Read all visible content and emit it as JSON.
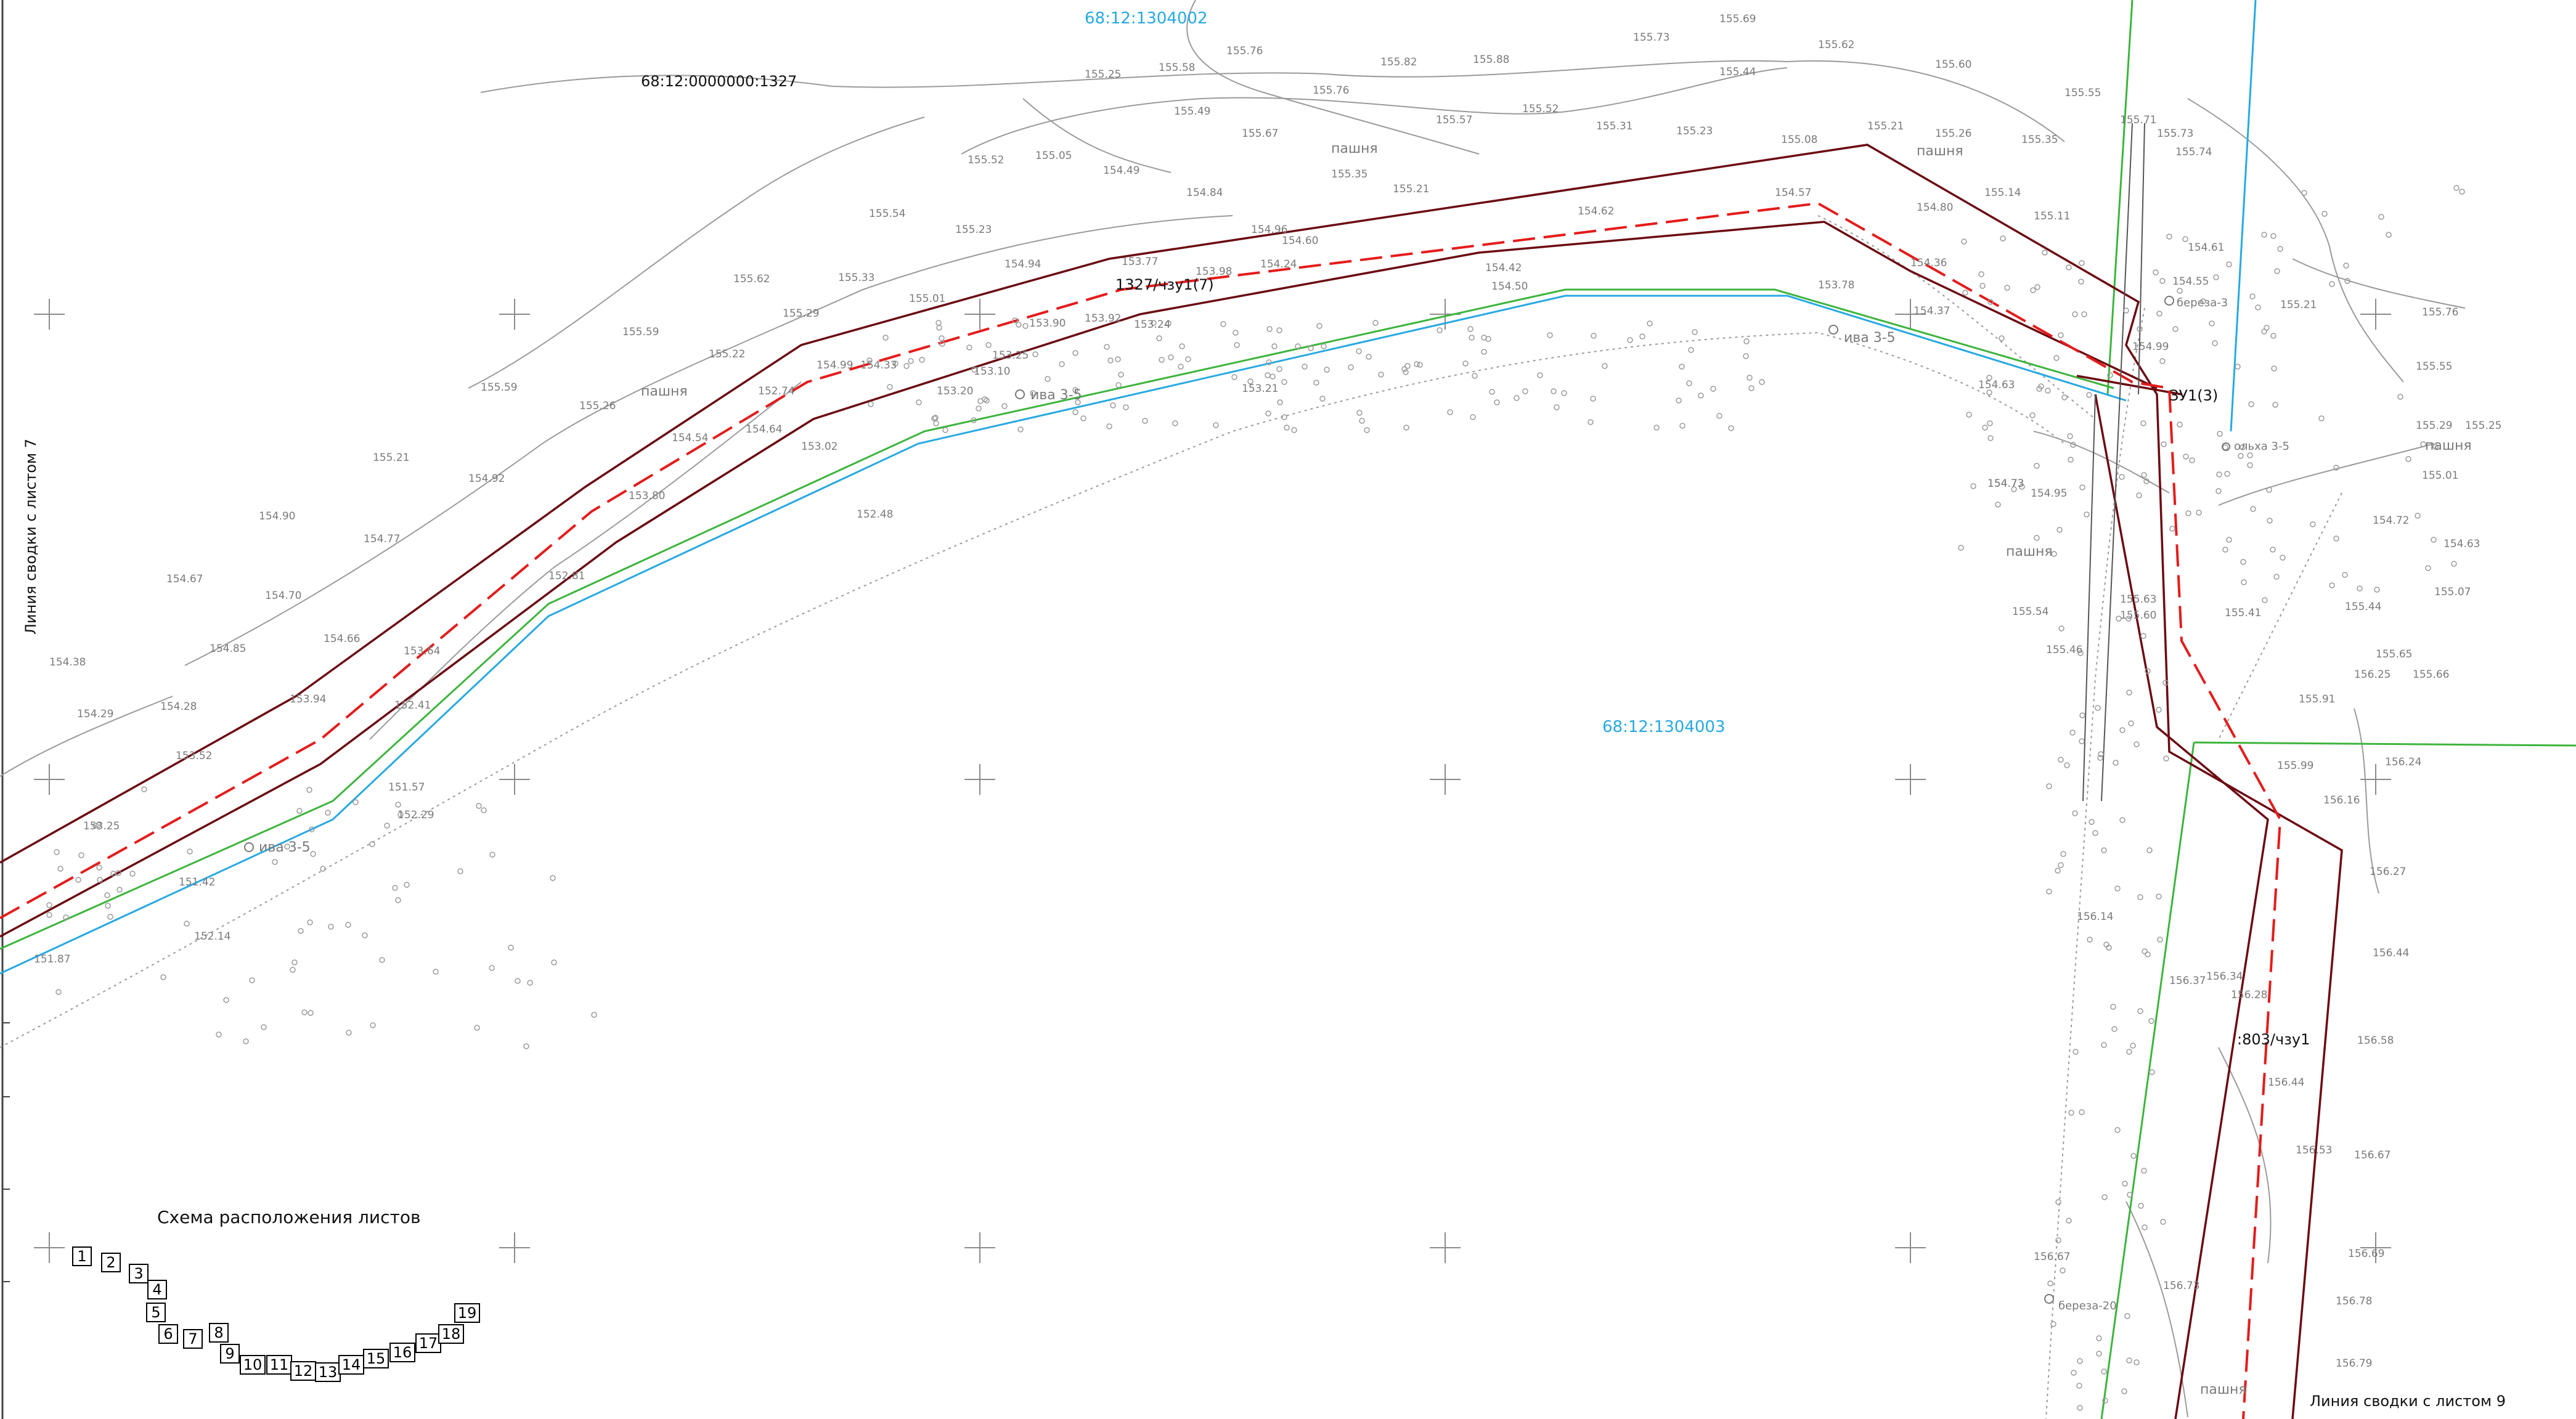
{
  "map": {
    "parcel_labels": {
      "north_cadastral": "68:12:1304002",
      "main_cadastral": "68:12:1304003",
      "nw_parcel": "68:12:0000000:1327",
      "easement_1": "1327/чзу1(7)",
      "easement_2": "ЗУ1(3)",
      "easement_3": ":803/чзу1"
    },
    "sheet_link_left": "Линия сводки с листом 7",
    "sheet_link_right": "Линия сводки с листом 9",
    "land_labels": [
      "пашня",
      "пашня",
      "пашня",
      "пашня",
      "пашня",
      "пашня"
    ],
    "tree_labels": [
      "ива 3-5",
      "ива 3-5",
      "ива 3-5",
      "береза-3",
      "ольха 3-5",
      "береза-20"
    ],
    "elevations": [
      "155.58",
      "155.76",
      "155.82",
      "155.88",
      "155.73",
      "155.69",
      "155.62",
      "155.60",
      "155.44",
      "155.55",
      "155.25",
      "155.49",
      "155.67",
      "155.76",
      "155.57",
      "155.52",
      "155.31",
      "155.23",
      "155.21",
      "155.26",
      "155.35",
      "155.52",
      "155.05",
      "154.49",
      "154.84",
      "155.35",
      "155.21",
      "155.08",
      "155.71",
      "155.73",
      "155.74",
      "155.54",
      "155.23",
      "154.94",
      "154.96",
      "154.60",
      "154.62",
      "154.57",
      "154.80",
      "155.14",
      "155.11",
      "155.62",
      "155.33",
      "155.01",
      "153.77",
      "153.98",
      "154.24",
      "154.42",
      "154.36",
      "154.61",
      "155.59",
      "155.22",
      "155.29",
      "154.99",
      "154.33",
      "153.90",
      "153.92",
      "154.50",
      "153.78",
      "154.37",
      "155.26",
      "155.59",
      "154.54",
      "153.25",
      "153.24",
      "152.74",
      "153.10",
      "153.20",
      "154.63",
      "154.99",
      "155.21",
      "154.92",
      "154.64",
      "153.80",
      "153.02",
      "152.48",
      "153.21",
      "154.55",
      "155.21",
      "155.76",
      "154.90",
      "154.77",
      "154.70",
      "154.67",
      "154.66",
      "153.64",
      "152.81",
      "154.73",
      "154.95",
      "155.55",
      "154.85",
      "154.38",
      "154.29",
      "154.28",
      "153.94",
      "152.41",
      "152.29",
      "154.73",
      "155.29",
      "155.25",
      "153.52",
      "153.25",
      "151.57",
      "151.42",
      "152.14",
      "151.87",
      "155.54",
      "155.46",
      "155.01",
      "154.72",
      "154.63",
      "155.07",
      "155.44",
      "155.41",
      "155.65",
      "155.66",
      "155.91",
      "155.99",
      "156.24",
      "156.16",
      "156.27",
      "156.44",
      "156.58",
      "156.67",
      "156.69",
      "156.78",
      "156.79",
      "156.53",
      "156.44",
      "156.14",
      "156.28",
      "156.34",
      "156.37",
      "156.67",
      "156.73",
      "156.25",
      "155.63",
      "155.60"
    ]
  },
  "scheme": {
    "title": "Схема расположения листов",
    "sheets": [
      "1",
      "2",
      "3",
      "4",
      "5",
      "6",
      "7",
      "8",
      "9",
      "10",
      "11",
      "12",
      "13",
      "14",
      "15",
      "16",
      "17",
      "18",
      "19"
    ]
  },
  "colors": {
    "parcel_boundary": "#6b0a12",
    "easement_axis": "#e51b1b",
    "blue_line": "#27a9e1",
    "green_line": "#3cb43c",
    "contour": "#9a9a9a"
  }
}
